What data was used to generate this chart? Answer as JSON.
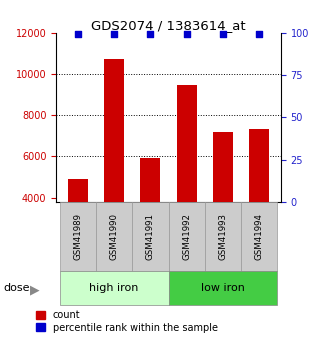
{
  "title": "GDS2074 / 1383614_at",
  "categories": [
    "GSM41989",
    "GSM41990",
    "GSM41991",
    "GSM41992",
    "GSM41993",
    "GSM41994"
  ],
  "bar_values": [
    4900,
    10750,
    5950,
    9450,
    7200,
    7350
  ],
  "percentile_values": [
    99,
    99,
    99,
    99,
    99,
    99
  ],
  "bar_color": "#cc0000",
  "percentile_color": "#0000cc",
  "ylim_left": [
    3800,
    12000
  ],
  "ylim_right": [
    0,
    100
  ],
  "yticks_left": [
    4000,
    6000,
    8000,
    10000,
    12000
  ],
  "yticks_right": [
    0,
    25,
    50,
    75,
    100
  ],
  "gridlines": [
    6000,
    8000,
    10000
  ],
  "groups": [
    {
      "label": "high iron",
      "n": 3,
      "color": "#ccffcc"
    },
    {
      "label": "low iron",
      "n": 3,
      "color": "#44cc44"
    }
  ],
  "dose_label": "dose",
  "legend_count": "count",
  "legend_percentile": "percentile rank within the sample",
  "bar_color_left_axis": "#cc0000",
  "pct_color_right_axis": "#2222cc",
  "tick_bg_color": "#cccccc",
  "tick_border_color": "#999999"
}
